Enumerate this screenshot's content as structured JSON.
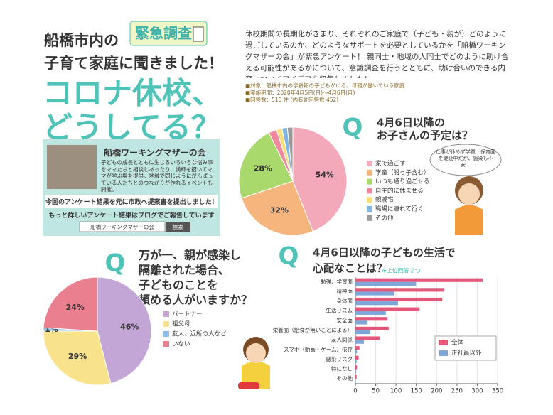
{
  "badge": "緊急調査",
  "header": {
    "lines": [
      "船橋市内の",
      "子育て家庭に聞きました！"
    ],
    "title_lines": [
      "コロナ休校、",
      "どうしてる？"
    ]
  },
  "intro": "休校期間の長期化がきまり、それぞれのご家庭で（子ども・親が）どのように過ごしているのか、どのようなサポートを必要としているかを「船橋ワーキングマザーの会」が緊急アンケート！ 親同士・地域の人同士でどのように助け合える可能性があるかについて、意識調査を行うとともに、助け合いのできる内容についてアイデアを収集しました！",
  "notes": [
    "■対象：船橋市内の学齢期の子どもがいる、母親が働いている家庭",
    "■実施期間：2020年4月5日(日)～4月6日(月)",
    "■回答数：510 件 (内有効回答数 452)"
  ],
  "group": {
    "name": "船橋ワーキングマザーの会",
    "description": "子どもの成長とともに生じるいろいろな悩み事をママたちと相談しあったり、講師を招いてママが学ぶ場を提供。地域で同じようにがんばっている人たちとのつながりが作れるイベントも開催。",
    "proposal": "今回のアンケート結果を元に市政へ提案書を提出しました！",
    "blog": "もっと詳しいアンケート結果はブログでご報告しています",
    "search_text": "船橋ワーキングマザーの会",
    "search_button": "検索"
  },
  "speech": "仕事が休めず学童・保育園を継続中だが、感染も不安…",
  "chart_data": [
    {
      "type": "pie",
      "marker": "Q",
      "title": [
        "4月6日以降の",
        "お子さんの予定は？"
      ],
      "categories": [
        "家で過ごす",
        "学童（船っ子含む）",
        "いつも通り過ごせる",
        "自主的に休ませる",
        "親戚宅",
        "職場に連れて行く",
        "その他"
      ],
      "values": [
        54,
        32,
        28,
        3,
        2,
        2,
        2
      ],
      "value_labels": [
        "54%",
        "32%",
        "28%",
        null,
        null,
        null,
        null
      ],
      "colors": [
        "#f4a9ba",
        "#f5b57c",
        "#a9d86c",
        "#f0889f",
        "#f7df7c",
        "#7fb5e0",
        "#9a9a9a"
      ]
    },
    {
      "type": "pie",
      "marker": "Q",
      "title": [
        "万が一、親が感染し",
        "隔離された場合、",
        "子どものことを",
        "頼める人がいますか？"
      ],
      "categories": [
        "パートナー",
        "祖父母",
        "友人、近所の人など",
        "いない"
      ],
      "values": [
        46,
        29,
        1,
        24
      ],
      "value_labels": [
        "46%",
        "29%",
        "1%",
        "24%"
      ],
      "colors": [
        "#c3a6d6",
        "#f8e28b",
        "#8cbde6",
        "#ea7f8f"
      ]
    },
    {
      "type": "hbar",
      "marker": "Q",
      "title": [
        "4月6日以降の子どもの生活で",
        "心配なことは？"
      ],
      "note": "※上位回答２つ",
      "categories": [
        "勉強、学習面",
        "精神面",
        "身体面",
        "生活リズム",
        "安全面",
        "栄養面（給食が無いことによる）",
        "友人関係",
        "スマホ（動画・ゲーム）依存",
        "感染リスク",
        "特になし",
        "その他"
      ],
      "series": [
        {
          "name": "全体",
          "color": "#e3587a",
          "values": [
            315,
            219,
            214,
            158,
            79,
            82,
            60,
            10,
            8,
            4,
            3
          ]
        },
        {
          "name": "正社員以外",
          "color": "#7fa6d9",
          "values": [
            149,
            96,
            105,
            75,
            30,
            37,
            21,
            4,
            3,
            2,
            1
          ]
        }
      ],
      "xlim": [
        0,
        350
      ],
      "xticks": [
        0,
        50,
        100,
        150,
        200,
        250,
        300,
        350
      ],
      "grid": true
    }
  ]
}
